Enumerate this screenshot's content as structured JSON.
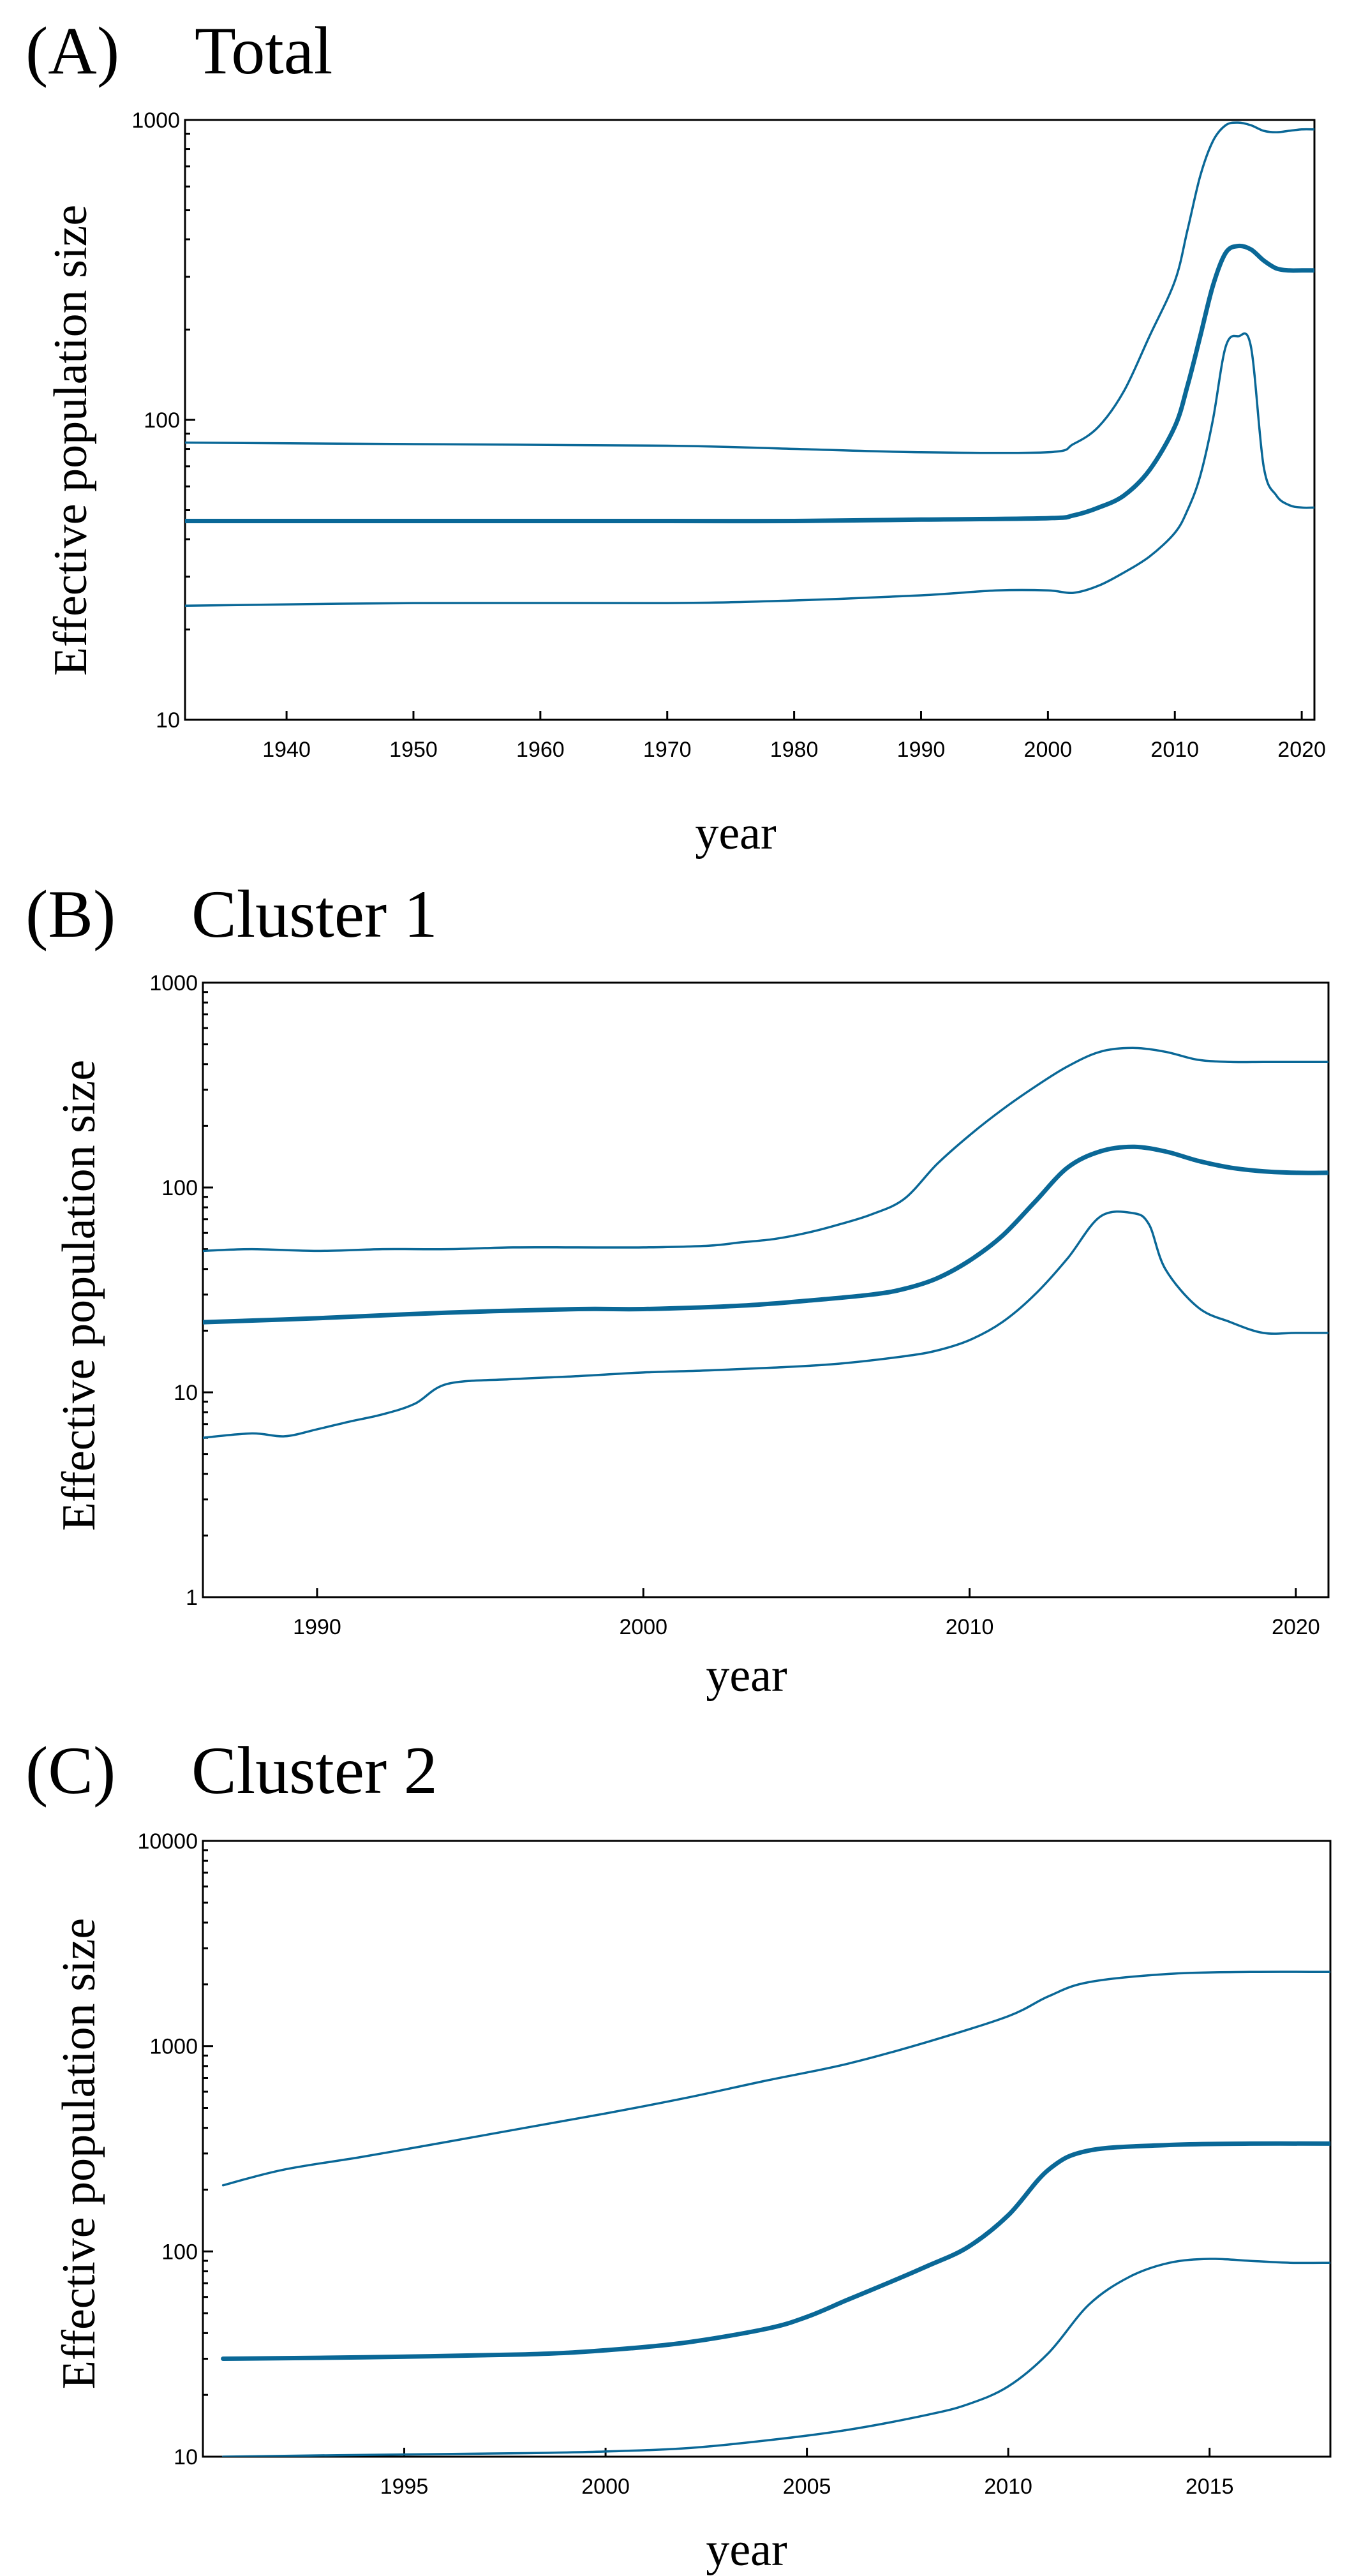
{
  "chart_data": [
    {
      "type": "line",
      "panel_label": "(A)",
      "title": "Total",
      "xlabel": "year",
      "ylabel": "Effective  population size",
      "yscale": "log",
      "xlim": [
        1932,
        2021
      ],
      "ylim": [
        10,
        1000
      ],
      "xticks": [
        1940,
        1950,
        1960,
        1970,
        1980,
        1990,
        2000,
        2010,
        2020
      ],
      "yticks": [
        10,
        100,
        1000
      ],
      "series": [
        {
          "name": "upper",
          "role": "bound",
          "x": [
            1932,
            1950,
            1970,
            1980,
            1990,
            2000,
            2002,
            2004,
            2006,
            2008,
            2010,
            2011,
            2012,
            2013,
            2014,
            2015,
            2016,
            2017,
            2018,
            2019,
            2020,
            2021
          ],
          "y": [
            84,
            83,
            82,
            80,
            78,
            78,
            83,
            95,
            125,
            190,
            290,
            430,
            650,
            850,
            960,
            980,
            960,
            920,
            910,
            920,
            930,
            930
          ]
        },
        {
          "name": "median",
          "role": "median",
          "x": [
            1932,
            1950,
            1970,
            1980,
            1990,
            2000,
            2002,
            2004,
            2006,
            2008,
            2010,
            2011,
            2012,
            2013,
            2014,
            2015,
            2016,
            2017,
            2018,
            2019,
            2020,
            2021
          ],
          "y": [
            46,
            46,
            46,
            46,
            46.5,
            47,
            48,
            51,
            56,
            68,
            95,
            130,
            190,
            280,
            360,
            380,
            370,
            340,
            320,
            315,
            315,
            315
          ]
        },
        {
          "name": "lower",
          "role": "bound",
          "x": [
            1932,
            1950,
            1970,
            1980,
            1990,
            1996,
            2000,
            2002,
            2004,
            2006,
            2008,
            2010,
            2011,
            2012,
            2013,
            2014,
            2015,
            2016,
            2017,
            2018,
            2019,
            2020,
            2021
          ],
          "y": [
            24,
            24.5,
            24.5,
            25,
            26,
            27,
            27,
            26.5,
            28,
            31,
            35,
            42,
            50,
            65,
            100,
            175,
            190,
            175,
            70,
            56,
            52,
            51,
            51
          ]
        }
      ]
    },
    {
      "type": "line",
      "panel_label": "(B)",
      "title": "Cluster 1",
      "xlabel": "year",
      "ylabel": "Effective  population size",
      "yscale": "log",
      "xlim": [
        1986.5,
        2021
      ],
      "ylim": [
        1,
        1000
      ],
      "xticks": [
        1990,
        2000,
        2010,
        2020
      ],
      "yticks": [
        1,
        10,
        100,
        1000
      ],
      "series": [
        {
          "name": "upper",
          "role": "bound",
          "x": [
            1986.5,
            1988,
            1990,
            1992,
            1994,
            1996,
            1998,
            2000,
            2002,
            2003,
            2004,
            2005,
            2006,
            2007,
            2008,
            2009,
            2010,
            2011,
            2012,
            2013,
            2014,
            2015,
            2016,
            2017,
            2018,
            2019,
            2020,
            2021
          ],
          "y": [
            49,
            50,
            49,
            50,
            50,
            51,
            51,
            51,
            52,
            54,
            56,
            60,
            66,
            74,
            88,
            130,
            180,
            240,
            310,
            390,
            460,
            480,
            460,
            420,
            410,
            410,
            410,
            410
          ]
        },
        {
          "name": "median",
          "role": "median",
          "x": [
            1986.5,
            1990,
            1994,
            1998,
            2000,
            2003,
            2005,
            2007,
            2008,
            2009,
            2010,
            2011,
            2012,
            2013,
            2014,
            2015,
            2016,
            2017,
            2018,
            2019,
            2020,
            2021
          ],
          "y": [
            22,
            23,
            24.5,
            25.5,
            25.5,
            26.5,
            28,
            30,
            32,
            36,
            44,
            58,
            85,
            125,
            150,
            158,
            150,
            135,
            125,
            120,
            118,
            118
          ]
        },
        {
          "name": "lower",
          "role": "bound",
          "x": [
            1986.5,
            1988,
            1989,
            1990,
            1991,
            1992,
            1993,
            1994,
            1996,
            1998,
            2000,
            2002,
            2004,
            2006,
            2008,
            2009,
            2010,
            2011,
            2012,
            2013,
            2014,
            2015,
            2015.5,
            2016,
            2017,
            2018,
            2019,
            2020,
            2021
          ],
          "y": [
            6,
            6.3,
            6.1,
            6.6,
            7.2,
            7.8,
            8.8,
            11,
            11.6,
            12,
            12.5,
            12.8,
            13.2,
            13.8,
            15,
            16,
            18,
            22,
            30,
            45,
            72,
            75,
            66,
            40,
            26,
            22,
            19.5,
            19.5,
            19.5
          ]
        }
      ]
    },
    {
      "type": "line",
      "panel_label": "(C)",
      "title": "Cluster 2",
      "xlabel": "year",
      "ylabel": "Effective  population size",
      "yscale": "log",
      "xlim": [
        1990,
        2018
      ],
      "ylim": [
        10,
        10000
      ],
      "xticks": [
        1995,
        2000,
        2005,
        2010,
        2015
      ],
      "yticks": [
        10,
        100,
        1000,
        10000
      ],
      "series": [
        {
          "name": "upper",
          "role": "bound",
          "x": [
            1990.5,
            1992,
            1994,
            1996,
            1998,
            2000,
            2002,
            2004,
            2006,
            2008,
            2010,
            2011,
            2012,
            2014,
            2016,
            2018
          ],
          "y": [
            210,
            250,
            290,
            340,
            400,
            470,
            560,
            680,
            820,
            1050,
            1400,
            1750,
            2050,
            2250,
            2300,
            2300
          ]
        },
        {
          "name": "median",
          "role": "median",
          "x": [
            1990.5,
            1994,
            1998,
            2000,
            2002,
            2004,
            2005,
            2006,
            2007,
            2008,
            2009,
            2010,
            2011,
            2012,
            2014,
            2016,
            2018
          ],
          "y": [
            30,
            30.5,
            31.5,
            33,
            36,
            42,
            48,
            58,
            70,
            85,
            105,
            150,
            250,
            310,
            330,
            335,
            335
          ]
        },
        {
          "name": "lower",
          "role": "bound",
          "x": [
            1990.5,
            1994,
            1998,
            2000,
            2002,
            2004,
            2006,
            2008,
            2009,
            2010,
            2011,
            2012,
            2013,
            2014,
            2015,
            2016,
            2017,
            2018
          ],
          "y": [
            10,
            10.2,
            10.4,
            10.6,
            11,
            12,
            13.5,
            16,
            18,
            22,
            32,
            55,
            75,
            88,
            92,
            90,
            88,
            88
          ]
        }
      ]
    }
  ]
}
